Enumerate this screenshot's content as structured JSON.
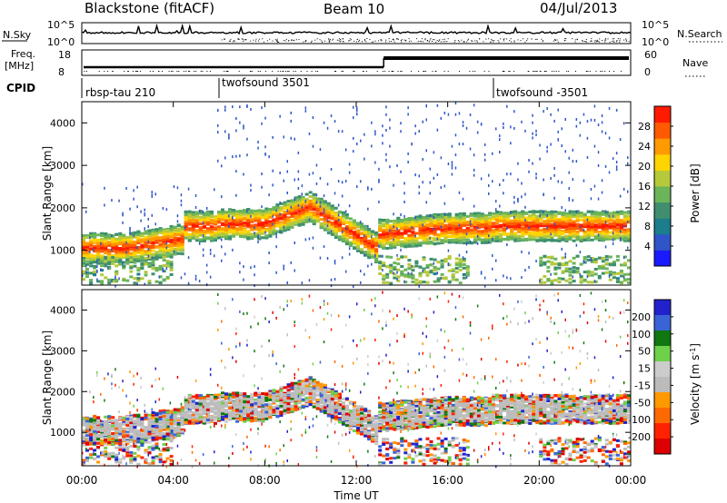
{
  "header": {
    "station": "Blackstone (fitACF)",
    "beam": "Beam 10",
    "date": "04/Jul/2013"
  },
  "top_panels": {
    "nsky_label": "N.Sky",
    "nsky_ticks": [
      "10^5",
      "10^0"
    ],
    "nsearch_label": "N.Search",
    "nsearch_ticks": [
      "10^5",
      "10^0"
    ],
    "freq_label_1": "Freq.",
    "freq_label_2": "[MHz]",
    "freq_ticks": [
      "18",
      "8"
    ],
    "nave_label": "Nave",
    "nave_ticks": [
      "60",
      "0"
    ],
    "cpid_label": "CPID",
    "cpid_segments": [
      {
        "label": "rbsp-tau 210",
        "start_hour": 0
      },
      {
        "label": "twofsound 3501",
        "start_hour": 6
      },
      {
        "label": "twofsound -3501",
        "start_hour": 18
      }
    ]
  },
  "colors": {
    "power_scale": [
      "#1a1aff",
      "#2f55c8",
      "#1c7d8c",
      "#3f8f6e",
      "#6bb45a",
      "#b6c93a",
      "#ffd400",
      "#ff9a00",
      "#ff5a00",
      "#ff1a00"
    ],
    "velocity_scale": [
      "#2222cc",
      "#3a63d8",
      "#117711",
      "#6fd04a",
      "#cccccc",
      "#bbbbbb",
      "#ff9900",
      "#ff6a00",
      "#ff2200",
      "#dd0000"
    ]
  },
  "chart_data": [
    {
      "type": "heatmap",
      "title": "Power",
      "ylabel": "Slant Range [km]",
      "xlabel": "Time UT",
      "x_ticks": [
        "00:00",
        "04:00",
        "08:00",
        "12:00",
        "16:00",
        "20:00",
        "00:00"
      ],
      "xlim": [
        0,
        24
      ],
      "ylim": [
        180,
        4500
      ],
      "y_ticks": [
        1000,
        2000,
        3000,
        4000
      ],
      "colorbar_label": "Power [dB]",
      "colorbar_ticks": [
        4,
        8,
        12,
        16,
        20,
        24,
        28
      ],
      "colorbar_range": [
        0,
        32
      ]
    },
    {
      "type": "heatmap",
      "title": "Velocity",
      "ylabel": "Slant Range [km]",
      "xlabel": "Time UT",
      "x_ticks": [
        "00:00",
        "04:00",
        "08:00",
        "12:00",
        "16:00",
        "20:00",
        "00:00"
      ],
      "xlim": [
        0,
        24
      ],
      "ylim": [
        180,
        4500
      ],
      "y_ticks": [
        1000,
        2000,
        3000,
        4000
      ],
      "colorbar_label": "Velocity [m s",
      "colorbar_label_sup": "-1",
      "colorbar_label_end": "]",
      "colorbar_ticks": [
        "200",
        "100",
        "50",
        "15",
        "-15",
        "-50",
        "-100",
        "-200"
      ]
    }
  ]
}
